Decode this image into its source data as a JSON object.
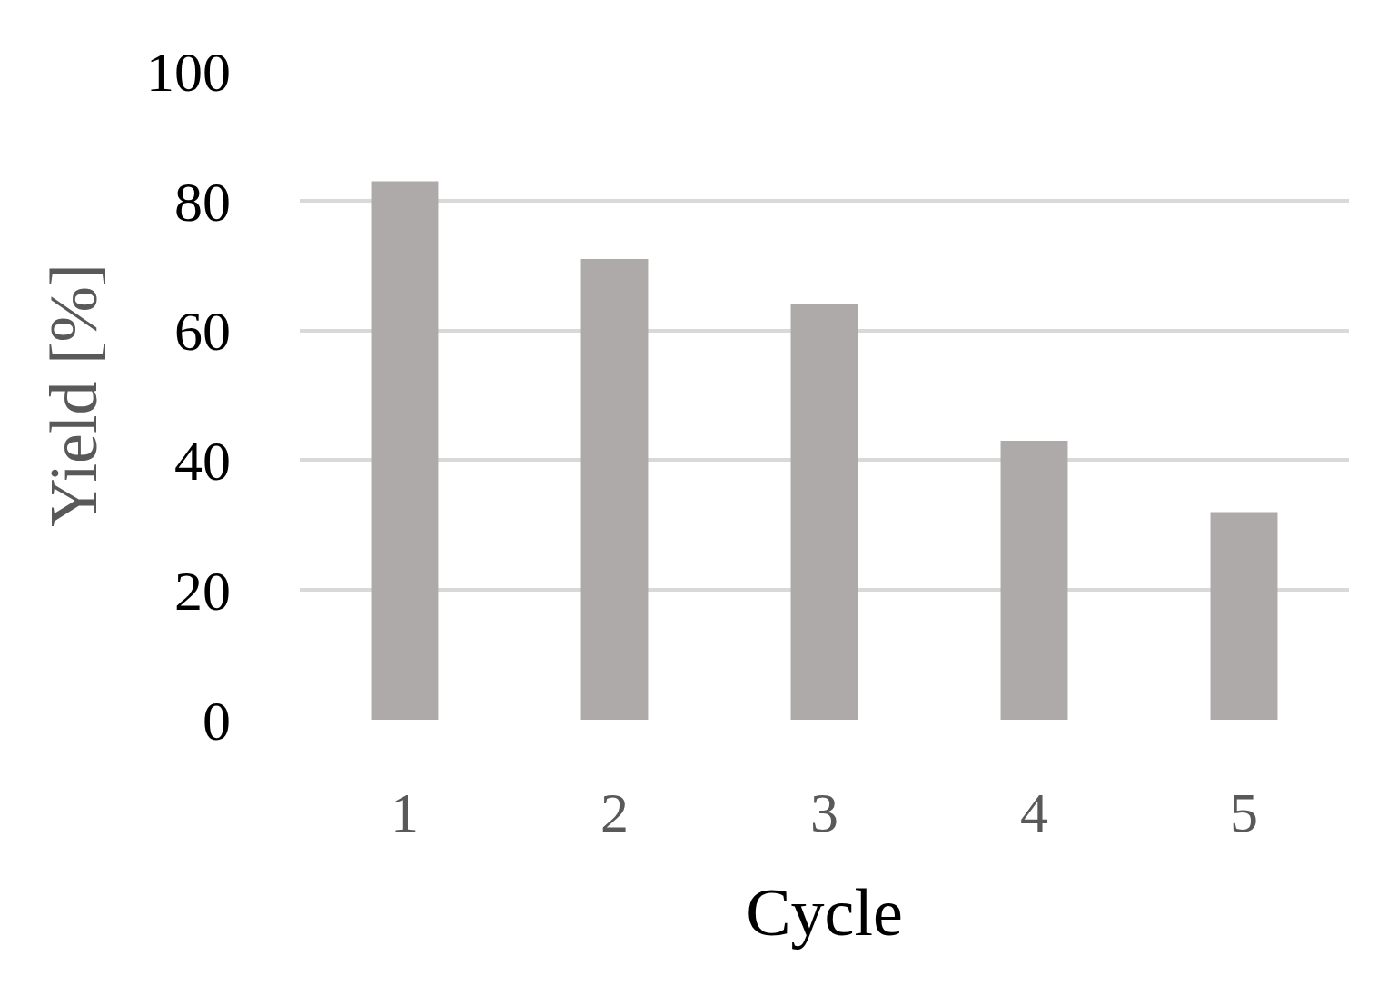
{
  "chart_data": {
    "type": "bar",
    "xlabel": "Cycle",
    "ylabel": "Yield [%]",
    "categories": [
      "1",
      "2",
      "3",
      "4",
      "5"
    ],
    "values": [
      83,
      71,
      64,
      43,
      32
    ],
    "color": "#aeaaaa",
    "ylim": [
      0,
      100
    ],
    "yticks": [
      0,
      20,
      40,
      60,
      80,
      100
    ],
    "grid": "y"
  }
}
